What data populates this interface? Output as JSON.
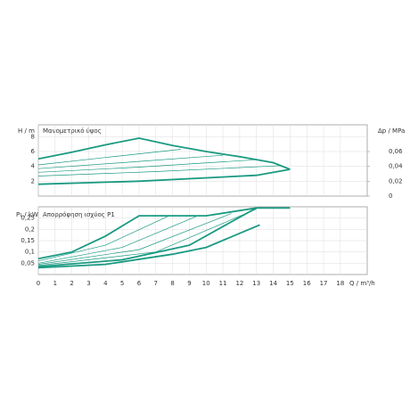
{
  "chart_data": [
    {
      "type": "line",
      "title": "Μανομετρικό ύψος",
      "ylabel": "H / m",
      "y2label": "Δp / MPa",
      "xlim": [
        0,
        19.6
      ],
      "ylim": [
        0,
        9.6
      ],
      "yticks": [
        2,
        4,
        6,
        8
      ],
      "y2lim": [
        0,
        0.096
      ],
      "y2ticks": [
        0,
        {
          "value": 0.02,
          "label": "0,02"
        },
        {
          "value": 0.04,
          "label": "0,04"
        },
        {
          "value": 0.06,
          "label": "0,06"
        }
      ],
      "grid": true,
      "series": [
        {
          "color": "#1a9a82",
          "style": "bold",
          "x": [
            0,
            2,
            4,
            6,
            8,
            10,
            12,
            14,
            15
          ],
          "values": [
            5.0,
            5.9,
            6.9,
            7.8,
            6.8,
            6.0,
            5.3,
            4.5,
            3.6
          ]
        },
        {
          "color": "#1a9a82",
          "style": "thin",
          "x": [
            0,
            4,
            8.5
          ],
          "values": [
            4.2,
            5.2,
            6.3
          ]
        },
        {
          "color": "#1a9a82",
          "style": "thin",
          "x": [
            0,
            5,
            11
          ],
          "values": [
            3.7,
            4.5,
            5.5
          ]
        },
        {
          "color": "#1a9a82",
          "style": "thin",
          "x": [
            0,
            6,
            13
          ],
          "values": [
            3.2,
            3.9,
            4.9
          ]
        },
        {
          "color": "#1a9a82",
          "style": "thin",
          "x": [
            0,
            7,
            14.5
          ],
          "values": [
            2.7,
            3.3,
            4.1
          ]
        },
        {
          "color": "#1a9a82",
          "style": "bold",
          "x": [
            0,
            6,
            13,
            15
          ],
          "values": [
            1.6,
            2.0,
            2.8,
            3.6
          ]
        }
      ]
    },
    {
      "type": "line",
      "title": "Απορρόφηση ισχύος P1",
      "ylabel": "P₁ / kW",
      "xlabel": "Q / m³/h",
      "xlim": [
        0,
        19.6
      ],
      "ylim": [
        0,
        0.3
      ],
      "xticks": [
        0,
        1,
        2,
        3,
        4,
        5,
        6,
        7,
        8,
        9,
        10,
        11,
        12,
        13,
        14,
        15,
        16,
        17,
        18
      ],
      "yticks": [
        {
          "value": 0.05,
          "label": "0,05"
        },
        {
          "value": 0.1,
          "label": "0,1"
        },
        {
          "value": 0.15,
          "label": "0,15"
        },
        {
          "value": 0.2,
          "label": "0,2"
        },
        {
          "value": 0.25,
          "label": "0,25"
        }
      ],
      "grid": true,
      "series": [
        {
          "color": "#1a9a82",
          "style": "bold",
          "x": [
            0,
            2,
            4,
            6,
            10,
            13,
            15
          ],
          "values": [
            0.07,
            0.1,
            0.17,
            0.26,
            0.26,
            0.295,
            0.295
          ]
        },
        {
          "color": "#1a9a82",
          "style": "thin",
          "x": [
            0,
            4,
            7.8
          ],
          "values": [
            0.06,
            0.13,
            0.26
          ]
        },
        {
          "color": "#1a9a82",
          "style": "thin",
          "x": [
            0,
            5,
            9.5
          ],
          "values": [
            0.05,
            0.12,
            0.26
          ]
        },
        {
          "color": "#1a9a82",
          "style": "thin",
          "x": [
            0,
            6,
            11.5
          ],
          "values": [
            0.045,
            0.11,
            0.27
          ]
        },
        {
          "color": "#1a9a82",
          "style": "thin",
          "x": [
            0,
            7,
            13
          ],
          "values": [
            0.04,
            0.1,
            0.29
          ]
        },
        {
          "color": "#1a9a82",
          "style": "bold",
          "x": [
            0,
            5,
            9,
            13
          ],
          "values": [
            0.035,
            0.065,
            0.13,
            0.295
          ]
        },
        {
          "color": "#1a9a82",
          "style": "bold",
          "x": [
            0,
            4,
            8,
            10,
            13.2
          ],
          "values": [
            0.03,
            0.045,
            0.09,
            0.12,
            0.22
          ]
        }
      ]
    }
  ]
}
